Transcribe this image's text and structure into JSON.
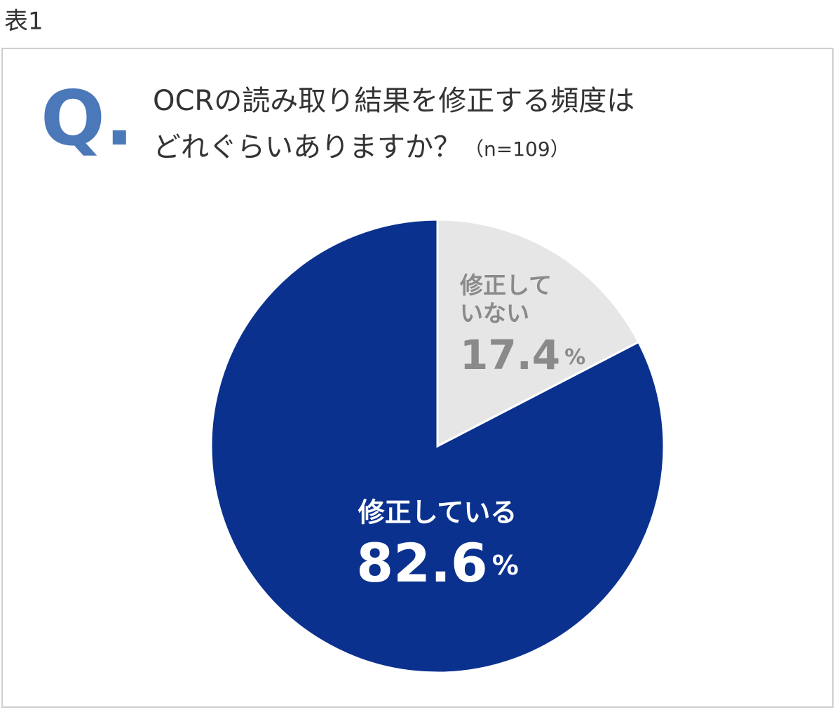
{
  "chart_data": {
    "type": "pie",
    "caption": "表1",
    "question_mark": "Q.",
    "title": [
      "OCRの読み取り結果を修正する頻度は",
      "どれぐらいありますか？"
    ],
    "sample_note": "（n=109）",
    "categories": [
      "修正していない",
      "修正している"
    ],
    "values": [
      17.4,
      82.6
    ],
    "value_labels": [
      "17.4%",
      "82.6%"
    ],
    "colors": [
      "#e6e6e6",
      "#0b318f"
    ]
  }
}
